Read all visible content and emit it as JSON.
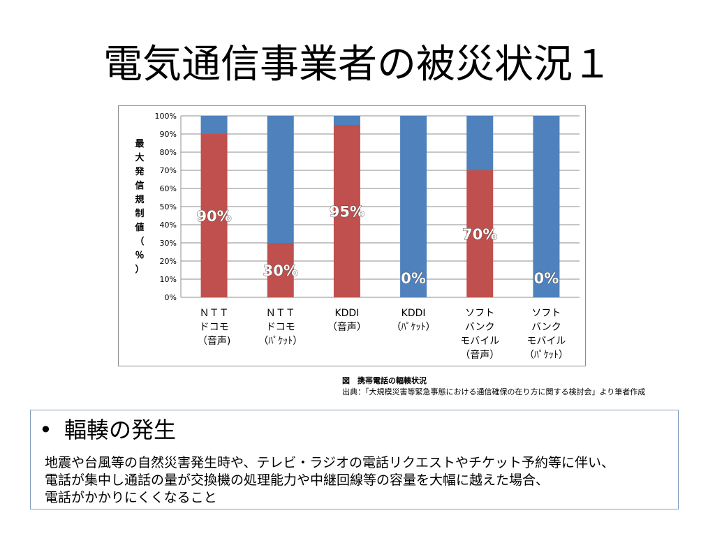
{
  "slide": {
    "title": "電気通信事業者の被災状況１"
  },
  "chart_data": {
    "type": "bar",
    "stacked": true,
    "ylabel": "最大発信規制値（％）",
    "ylim": [
      0,
      100
    ],
    "ytick_labels": [
      "0%",
      "10%",
      "20%",
      "30%",
      "40%",
      "50%",
      "60%",
      "70%",
      "80%",
      "90%",
      "100%"
    ],
    "grid": true,
    "categories": [
      [
        "ＮＴＴ",
        "ドコモ",
        "（音声)"
      ],
      [
        "ＮＴＴ",
        "ドコモ",
        "（ﾊﾟｹｯﾄ）"
      ],
      [
        "KDDI",
        "（音声）"
      ],
      [
        "KDDI",
        "（ﾊﾟｹｯﾄ）"
      ],
      [
        "ソフト",
        "バンク",
        "モバイル",
        "（音声）"
      ],
      [
        "ソフト",
        "バンク",
        "モバイル",
        "（ﾊﾟｹｯﾄ）"
      ]
    ],
    "series": [
      {
        "values": [
          90,
          30,
          95,
          0,
          70,
          0
        ],
        "color": "#c0504d"
      },
      {
        "values": [
          10,
          70,
          5,
          100,
          30,
          100
        ],
        "color": "#4f81bd"
      }
    ],
    "data_labels": [
      "90%",
      "30%",
      "95%",
      "0%",
      "70%",
      "0%"
    ]
  },
  "caption": {
    "title": "図　携帯電話の輻輳状況",
    "source": "出典：「大規模災害等緊急事態における通信確保の在り方に関する検討会」より筆者作成"
  },
  "text_box": {
    "bullet": "•",
    "heading": "輻輳の発生",
    "lines": [
      "地震や台風等の自然災害発生時や、テレビ・ラジオの電話リクエストやチケット予約等に伴い、",
      "電話が集中し通話の量が交換機の処理能力や中継回線等の容量を大幅に越えた場合、",
      "電話がかかりにくくなること"
    ]
  }
}
